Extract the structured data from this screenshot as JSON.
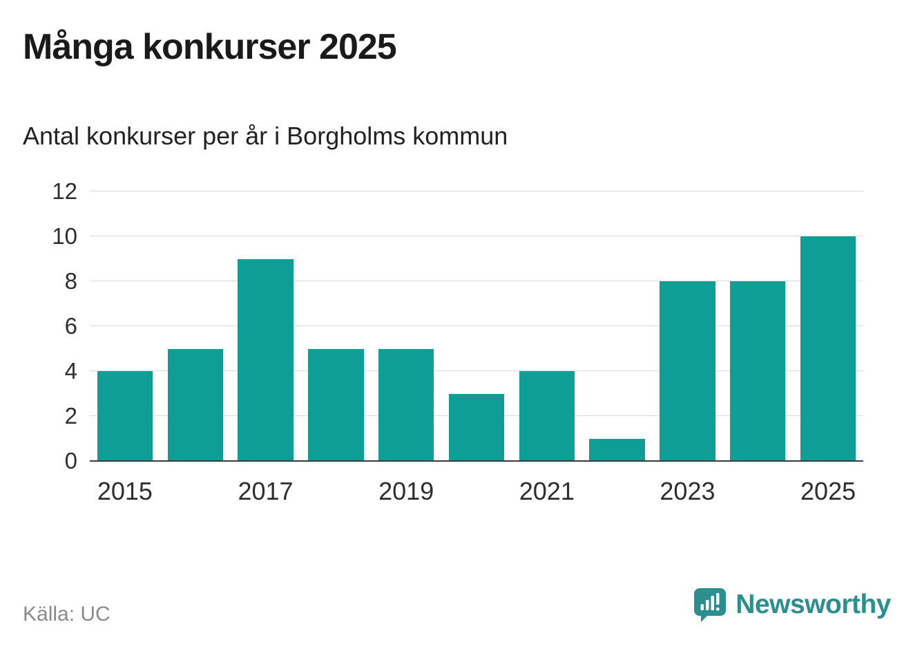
{
  "title": "Många konkurser 2025",
  "subtitle": "Antal konkurser per år i Borgholms kommun",
  "source": "Källa: UC",
  "logo": {
    "text": "Newsworthy"
  },
  "colors": {
    "bar": "#0e9e96",
    "brand": "#2b8f8f",
    "grid": "#d9d9d9",
    "axis": "#3a3a3a"
  },
  "chart_data": {
    "type": "bar",
    "title": "Många konkurser 2025",
    "subtitle": "Antal konkurser per år i Borgholms kommun",
    "categories": [
      "2015",
      "2016",
      "2017",
      "2018",
      "2019",
      "2020",
      "2021",
      "2022",
      "2023",
      "2024",
      "2025"
    ],
    "values": [
      4,
      5,
      9,
      5,
      5,
      3,
      4,
      1,
      8,
      8,
      10
    ],
    "xlabel": "",
    "ylabel": "",
    "ylim": [
      0,
      12
    ],
    "yticks": [
      0,
      2,
      4,
      6,
      8,
      10,
      12
    ],
    "xtick_labels": [
      "2015",
      "2017",
      "2019",
      "2021",
      "2023",
      "2025"
    ],
    "grid": true,
    "legend": "none",
    "bar_color": "#0e9e96"
  }
}
